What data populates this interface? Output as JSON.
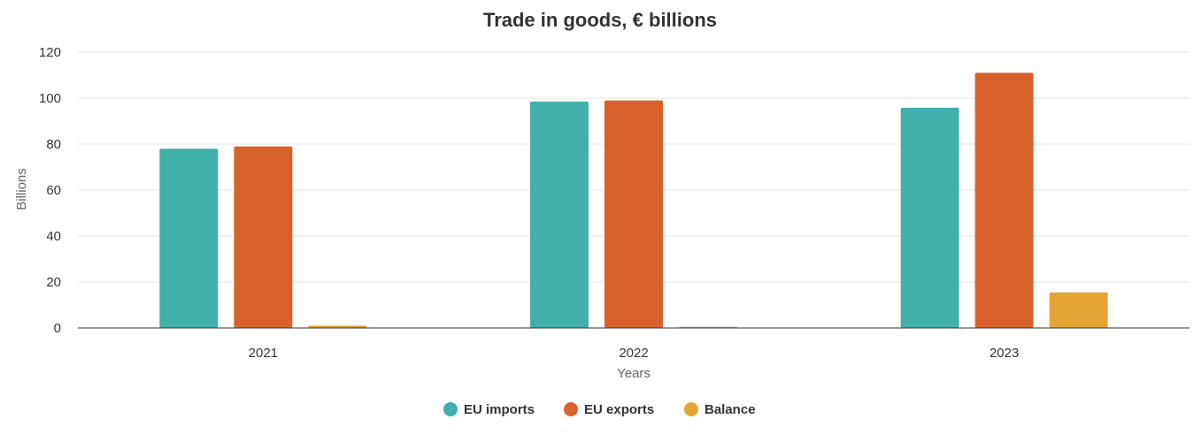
{
  "chart_data": {
    "type": "bar",
    "title": "Trade in goods, € billions",
    "xlabel": "Years",
    "ylabel": "Billions",
    "categories": [
      "2021",
      "2022",
      "2023"
    ],
    "ylim": [
      0,
      120
    ],
    "yticks": [
      0,
      20,
      40,
      60,
      80,
      100,
      120
    ],
    "grid": true,
    "legend_position": "bottom-center",
    "series": [
      {
        "name": "EU imports",
        "color": "#41b0aa",
        "values": [
          78,
          98.5,
          95.8
        ]
      },
      {
        "name": "EU exports",
        "color": "#d9622c",
        "values": [
          79,
          99,
          111
        ]
      },
      {
        "name": "Balance",
        "color": "#e5a535",
        "values": [
          1,
          0.5,
          15.5
        ]
      }
    ]
  }
}
